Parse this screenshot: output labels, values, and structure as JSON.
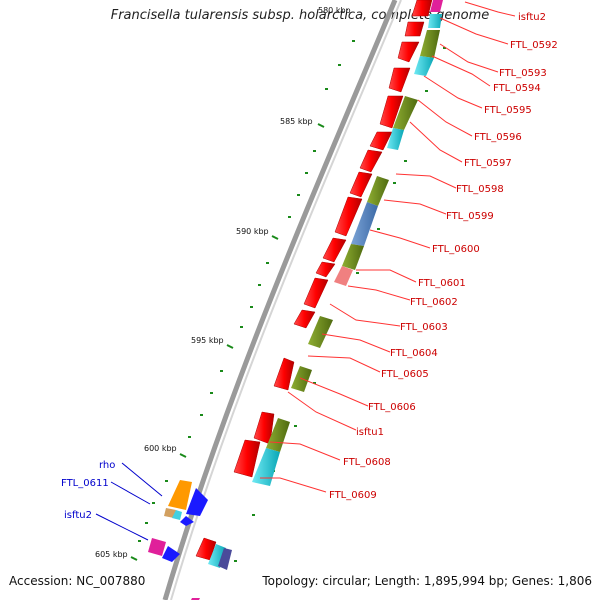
{
  "title": "Francisella tularensis subsp. holarctica, complete genome",
  "accession": "Accession: NC_007880",
  "topology": "Topology: circular; Length: 1,895,994 bp; Genes: 1,806",
  "colors": {
    "backbone": "#8a8a8a",
    "forward_gene": "#ff0000",
    "reverse_gene": "#ff0000",
    "feature_olive": "#6e8c1e",
    "feature_cyan": "#19c6d6",
    "feature_blue": "#1a1aff",
    "feature_orange": "#ff9900",
    "feature_magenta": "#e0209a",
    "label_red": "#cc0000",
    "label_blue": "#0000cc",
    "tick_green": "#1a8a1a"
  },
  "scale_ticks": [
    {
      "label": "580 kbp"
    },
    {
      "label": "585 kbp"
    },
    {
      "label": "590 kbp"
    },
    {
      "label": "595 kbp"
    },
    {
      "label": "600 kbp"
    },
    {
      "label": "605 kbp"
    }
  ],
  "right_labels": [
    "isftu2",
    "FTL_0592",
    "FTL_0593",
    "FTL_0594",
    "FTL_0595",
    "FTL_0596",
    "FTL_0597",
    "FTL_0598",
    "FTL_0599",
    "FTL_0600",
    "FTL_0601",
    "FTL_0602",
    "FTL_0603",
    "FTL_0604",
    "FTL_0605",
    "FTL_0606",
    "isftu1",
    "FTL_0608",
    "FTL_0609"
  ],
  "left_labels": [
    "rho",
    "FTL_0611",
    "isftu2"
  ]
}
